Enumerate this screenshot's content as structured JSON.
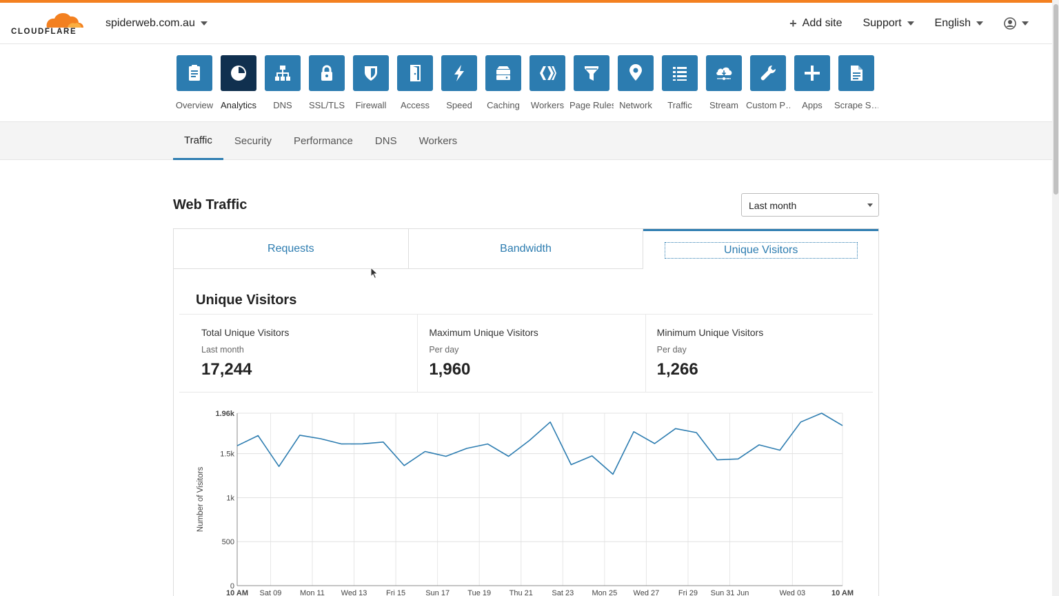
{
  "header": {
    "logo_text": "CLOUDFLARE",
    "site": "spiderweb.com.au",
    "add_site": "Add site",
    "support": "Support",
    "language": "English"
  },
  "nav": [
    {
      "label": "Overview",
      "icon": "clipboard-icon"
    },
    {
      "label": "Analytics",
      "icon": "pie-chart-icon",
      "active": true
    },
    {
      "label": "DNS",
      "icon": "network-tree-icon"
    },
    {
      "label": "SSL/TLS",
      "icon": "lock-icon"
    },
    {
      "label": "Firewall",
      "icon": "shield-icon"
    },
    {
      "label": "Access",
      "icon": "door-icon"
    },
    {
      "label": "Speed",
      "icon": "lightning-icon"
    },
    {
      "label": "Caching",
      "icon": "drive-icon"
    },
    {
      "label": "Workers",
      "icon": "workers-icon"
    },
    {
      "label": "Page Rules",
      "icon": "filter-icon"
    },
    {
      "label": "Network",
      "icon": "location-pin-icon"
    },
    {
      "label": "Traffic",
      "icon": "list-icon"
    },
    {
      "label": "Stream",
      "icon": "cloud-stream-icon"
    },
    {
      "label": "Custom P…",
      "icon": "wrench-icon"
    },
    {
      "label": "Apps",
      "icon": "plus-icon"
    },
    {
      "label": "Scrape S…",
      "icon": "document-icon"
    }
  ],
  "subtabs": [
    "Traffic",
    "Security",
    "Performance",
    "DNS",
    "Workers"
  ],
  "page": {
    "title": "Web Traffic",
    "period": "Last month"
  },
  "metric_tabs": [
    "Requests",
    "Bandwidth",
    "Unique Visitors"
  ],
  "section_title": "Unique Visitors",
  "stats": [
    {
      "label": "Total Unique Visitors",
      "sub": "Last month",
      "value": "17,244"
    },
    {
      "label": "Maximum Unique Visitors",
      "sub": "Per day",
      "value": "1,960"
    },
    {
      "label": "Minimum Unique Visitors",
      "sub": "Per day",
      "value": "1,266"
    }
  ],
  "colors": {
    "accent": "#2c7cb0",
    "brand_orange": "#f38020",
    "nav_active": "#10304f"
  },
  "chart_data": {
    "type": "line",
    "ylabel": "Number of Visitors",
    "ylim": [
      0,
      1960
    ],
    "yticks": [
      {
        "label": "0",
        "value": 0
      },
      {
        "label": "500",
        "value": 500
      },
      {
        "label": "1k",
        "value": 1000
      },
      {
        "label": "1.5k",
        "value": 1500
      },
      {
        "label": "1.96k",
        "value": 1960
      }
    ],
    "xticks": [
      {
        "label": "10 AM",
        "index": 0,
        "bold": true
      },
      {
        "label": "Sat 09",
        "index": 1.6
      },
      {
        "label": "Mon 11",
        "index": 3.6
      },
      {
        "label": "Wed 13",
        "index": 5.6
      },
      {
        "label": "Fri 15",
        "index": 7.6
      },
      {
        "label": "Sun 17",
        "index": 9.6
      },
      {
        "label": "Tue 19",
        "index": 11.6
      },
      {
        "label": "Thu 21",
        "index": 13.6
      },
      {
        "label": "Sat 23",
        "index": 15.6
      },
      {
        "label": "Mon 25",
        "index": 17.6
      },
      {
        "label": "Wed 27",
        "index": 19.6
      },
      {
        "label": "Fri 29",
        "index": 21.6
      },
      {
        "label": "Sun 31 Jun",
        "index": 23.6
      },
      {
        "label": "Wed 03",
        "index": 26.6
      },
      {
        "label": "10 AM",
        "index": 29,
        "bold": true
      }
    ],
    "values": [
      1590,
      1705,
      1355,
      1710,
      1670,
      1610,
      1612,
      1632,
      1365,
      1525,
      1470,
      1560,
      1610,
      1470,
      1650,
      1860,
      1375,
      1475,
      1266,
      1750,
      1615,
      1785,
      1740,
      1430,
      1440,
      1600,
      1540,
      1860,
      1960,
      1820
    ]
  }
}
